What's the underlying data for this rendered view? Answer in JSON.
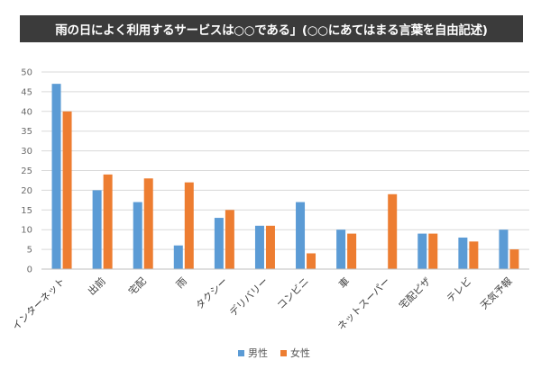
{
  "title": "雨の日によく利用するサービスは○○である」(○○にあてはまる言葉を自由記述)",
  "colors": {
    "male": "#5b9bd5",
    "female": "#ed7d31",
    "grid": "#d9d9d9",
    "title_bg": "#3b3b3b"
  },
  "chart_data": {
    "type": "bar",
    "title": "雨の日によく利用するサービスは○○である」(○○にあてはまる言葉を自由記述)",
    "categories": [
      "インターネット",
      "出前",
      "宅配",
      "雨",
      "タクシー",
      "デリバリー",
      "コンビニ",
      "車",
      "ネットスーパー",
      "宅配ピザ",
      "テレビ",
      "天気予報"
    ],
    "series": [
      {
        "name": "男性",
        "values": [
          47,
          20,
          17,
          6,
          13,
          11,
          17,
          10,
          0,
          9,
          8,
          10
        ]
      },
      {
        "name": "女性",
        "values": [
          40,
          24,
          23,
          22,
          15,
          11,
          4,
          9,
          19,
          9,
          7,
          5
        ]
      }
    ],
    "yticks": [
      0,
      5,
      10,
      15,
      20,
      25,
      30,
      35,
      40,
      45,
      50
    ],
    "ylim": [
      0,
      50
    ],
    "xlabel": "",
    "ylabel": "",
    "grid": true,
    "legend_position": "bottom"
  }
}
